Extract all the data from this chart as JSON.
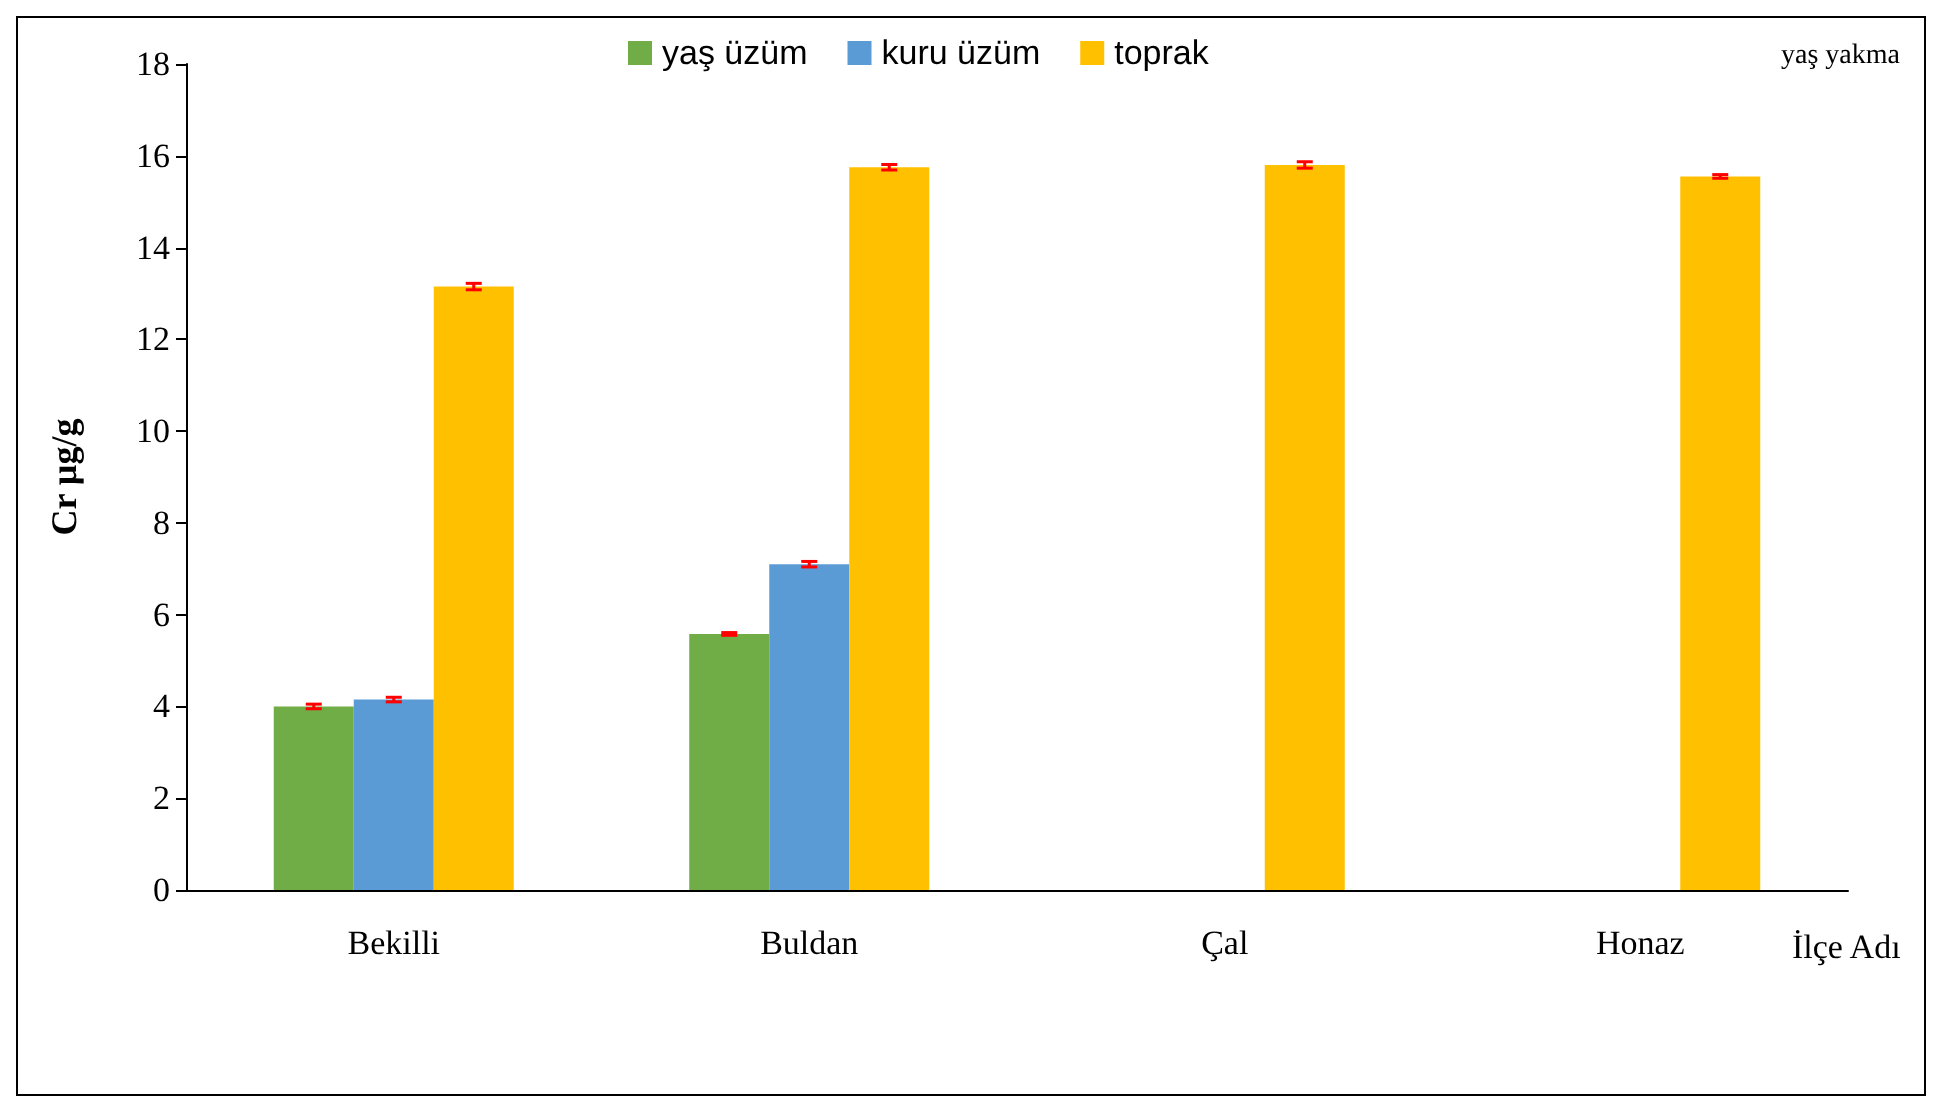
{
  "chart_data": {
    "type": "bar",
    "ylabel": "Cr µg/g",
    "xlabel": "İlçe Adı",
    "categories": [
      "Bekilli",
      "Buldan",
      "Çal",
      "Honaz"
    ],
    "series": [
      {
        "name": "yaş üzüm",
        "color": "#70ad47",
        "values": [
          4.0,
          5.58,
          null,
          null
        ],
        "errors": [
          0.05,
          0.03,
          null,
          null
        ]
      },
      {
        "name": "kuru üzüm",
        "color": "#5b9bd5",
        "values": [
          4.15,
          7.1,
          null,
          null
        ],
        "errors": [
          0.05,
          0.06,
          null,
          null
        ]
      },
      {
        "name": "toprak",
        "color": "#ffc000",
        "values": [
          13.15,
          15.75,
          15.8,
          15.55
        ],
        "errors": [
          0.07,
          0.06,
          0.07,
          0.04
        ]
      }
    ],
    "ylim": [
      0,
      18
    ],
    "yticks": [
      0,
      2,
      4,
      6,
      8,
      10,
      12,
      14,
      16,
      18
    ],
    "grid": false,
    "legend": "top",
    "annotations": [
      "yaş yakma"
    ]
  }
}
